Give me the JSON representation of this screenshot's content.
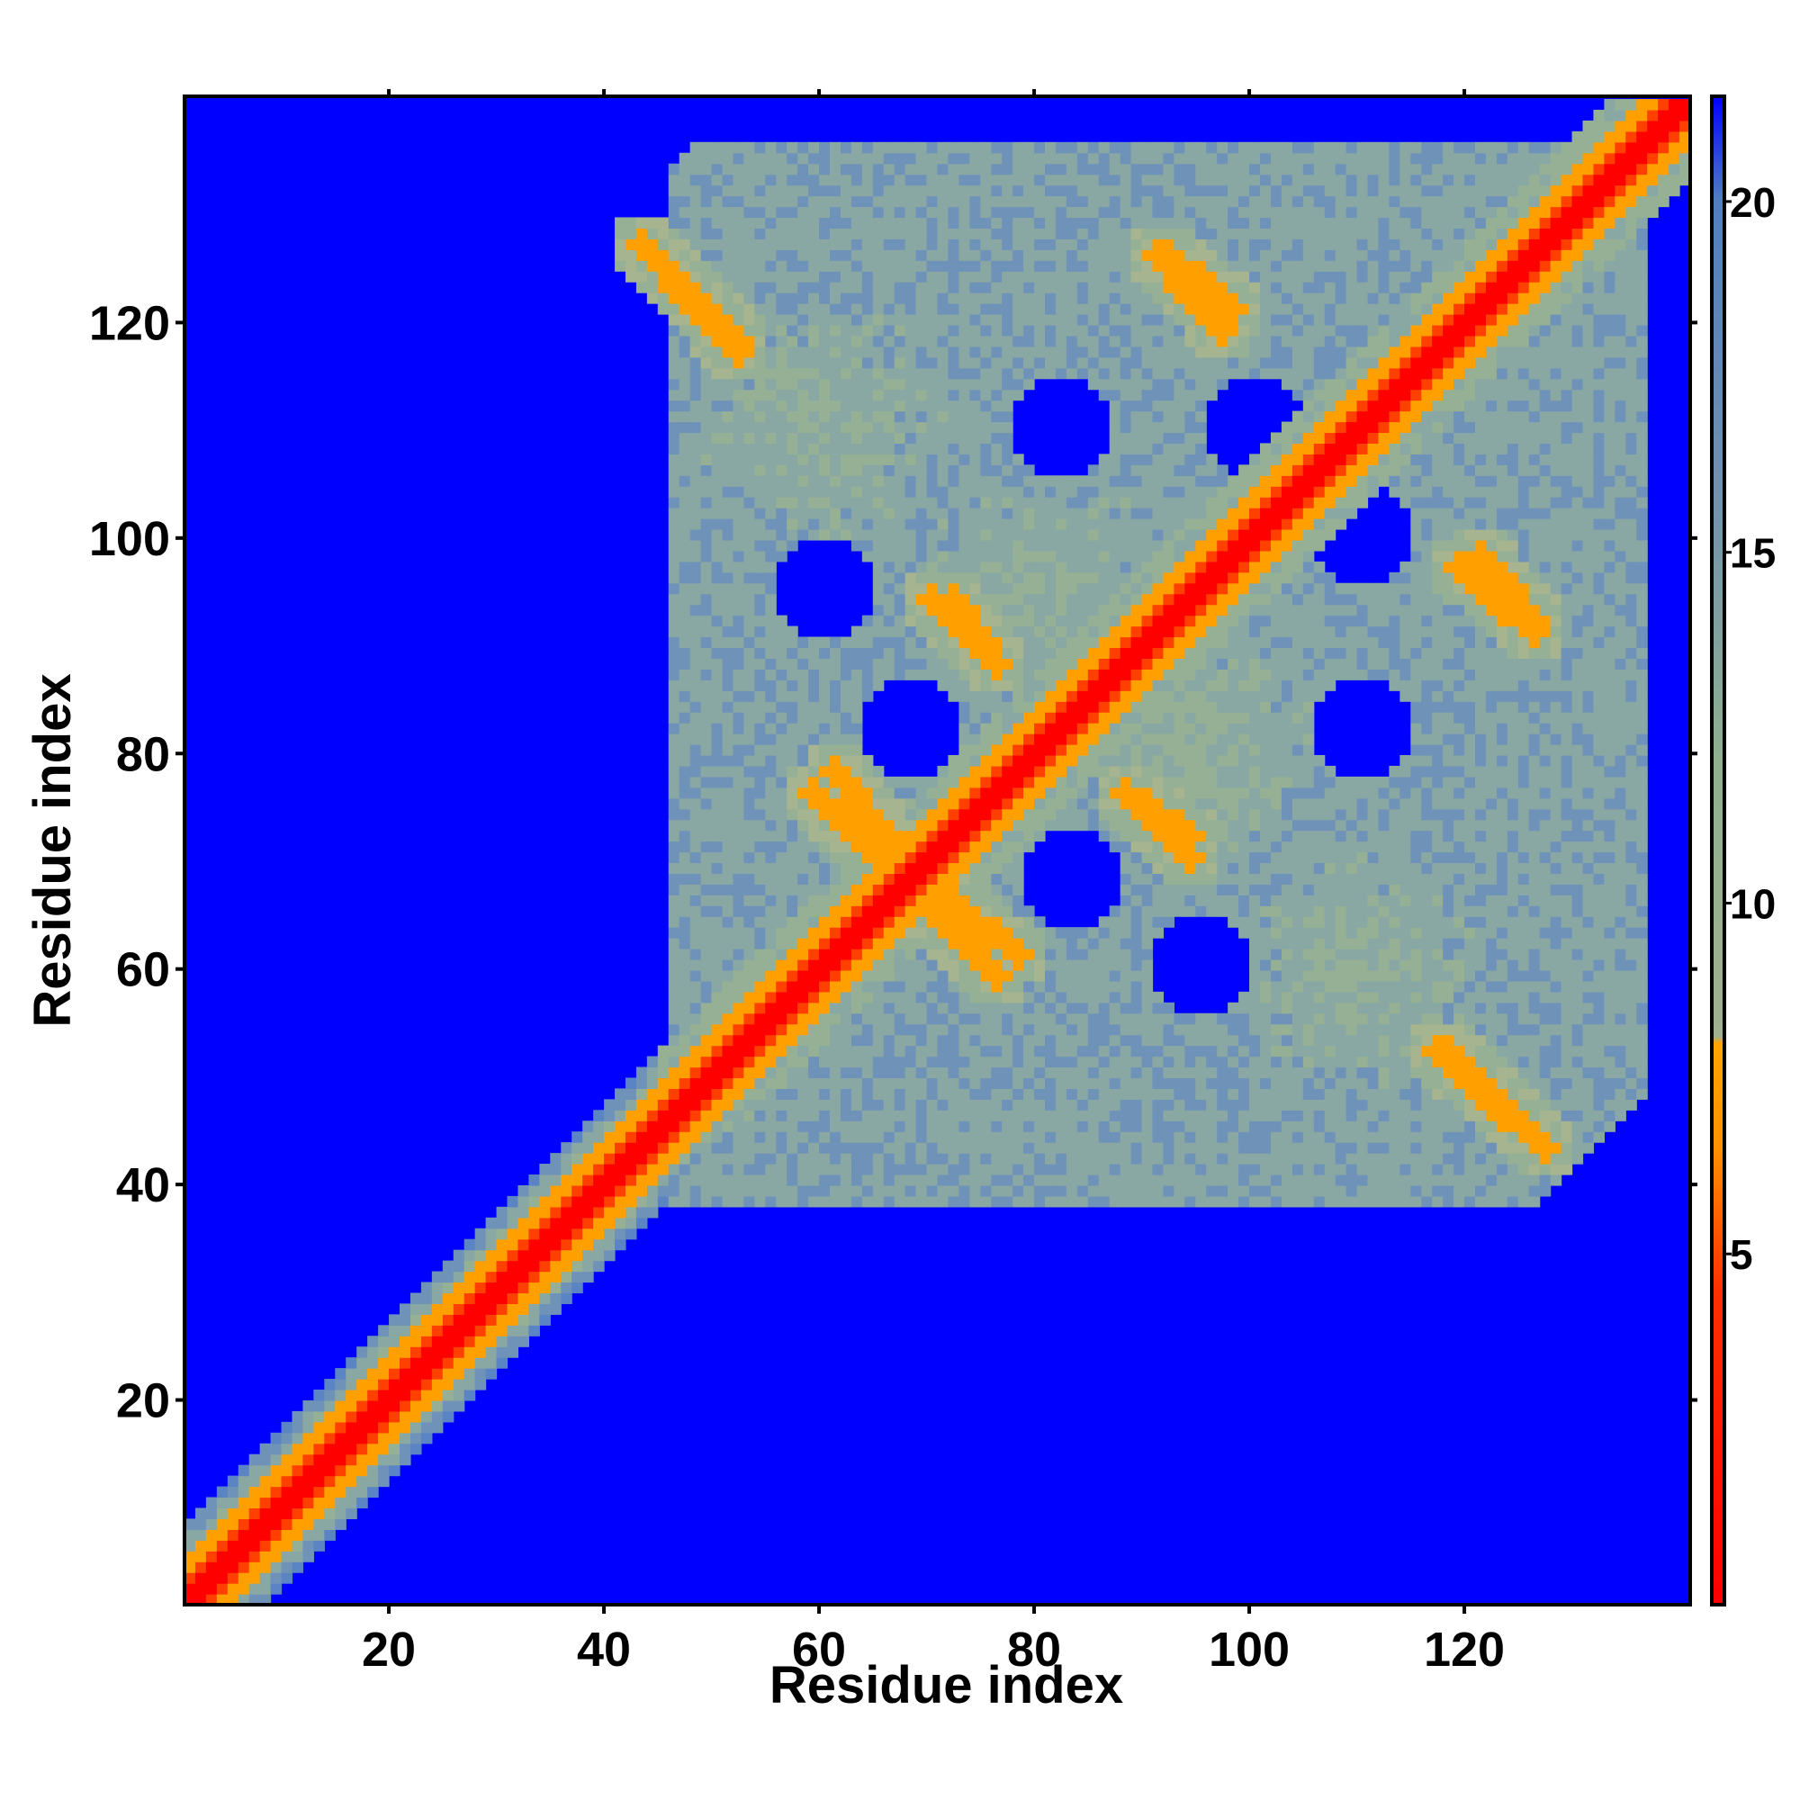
{
  "chart_data": {
    "type": "heatmap",
    "title": "",
    "xlabel": "Residue index",
    "ylabel": "Residue index",
    "xlim": [
      1,
      141
    ],
    "ylim": [
      1,
      141
    ],
    "x_ticks": [
      20,
      40,
      60,
      80,
      100,
      120
    ],
    "y_ticks": [
      20,
      40,
      60,
      80,
      100,
      120
    ],
    "x_tick_labels": [
      "20",
      "40",
      "60",
      "80",
      "100",
      "120"
    ],
    "y_tick_labels": [
      "20",
      "40",
      "60",
      "80",
      "100",
      "120"
    ],
    "colorbar": {
      "range": [
        0,
        21.5
      ],
      "ticks": [
        5,
        10,
        15,
        20
      ],
      "tick_labels": [
        "5",
        "10",
        "15",
        "20"
      ],
      "colors": [
        {
          "value": 0,
          "color": "#ff0000"
        },
        {
          "value": 4.5,
          "color": "#ff3000"
        },
        {
          "value": 6.5,
          "color": "#ff9000"
        },
        {
          "value": 8.0,
          "color": "#ffa500"
        },
        {
          "value": 8.1,
          "color": "#a0b090"
        },
        {
          "value": 12,
          "color": "#90b090"
        },
        {
          "value": 16,
          "color": "#7090b0"
        },
        {
          "value": 20,
          "color": "#5080c0"
        },
        {
          "value": 21.5,
          "color": "#0000ff"
        }
      ]
    },
    "cutoff": 21,
    "background_color": "#0000ff",
    "grid": false,
    "legend": "colorbar-right",
    "features": [
      {
        "kind": "diagonal",
        "note": "contact distance ~0 along i=j, ~6-8 within +/-3 residues"
      },
      {
        "kind": "anti-diagonal",
        "from": [
          43,
          127
        ],
        "to": [
          52,
          117
        ]
      },
      {
        "kind": "anti-diagonal",
        "from": [
          92,
          126
        ],
        "to": [
          98,
          121
        ]
      },
      {
        "kind": "anti-diagonal",
        "from": [
          119,
          97
        ],
        "to": [
          126,
          91
        ]
      },
      {
        "kind": "anti-diagonal",
        "from": [
          118,
          52
        ],
        "to": [
          127,
          43
        ]
      },
      {
        "kind": "anti-diagonal",
        "from": [
          61,
          78
        ],
        "to": [
          68,
          69
        ]
      },
      {
        "kind": "anti-diagonal",
        "from": [
          69,
          66
        ],
        "to": [
          76,
          59
        ]
      },
      {
        "kind": "anti-diagonal",
        "from": [
          72,
          94
        ],
        "to": [
          76,
          88
        ]
      },
      {
        "kind": "anti-diagonal",
        "from": [
          88,
          76
        ],
        "to": [
          94,
          70
        ]
      },
      {
        "kind": "cluster",
        "center": [
          95,
          80
        ],
        "note": "contact region ~10-17 A"
      },
      {
        "kind": "cluster",
        "center": [
          110,
          60
        ]
      },
      {
        "kind": "cluster",
        "center": [
          60,
          110
        ]
      },
      {
        "kind": "cluster",
        "center": [
          80,
          95
        ]
      }
    ]
  }
}
